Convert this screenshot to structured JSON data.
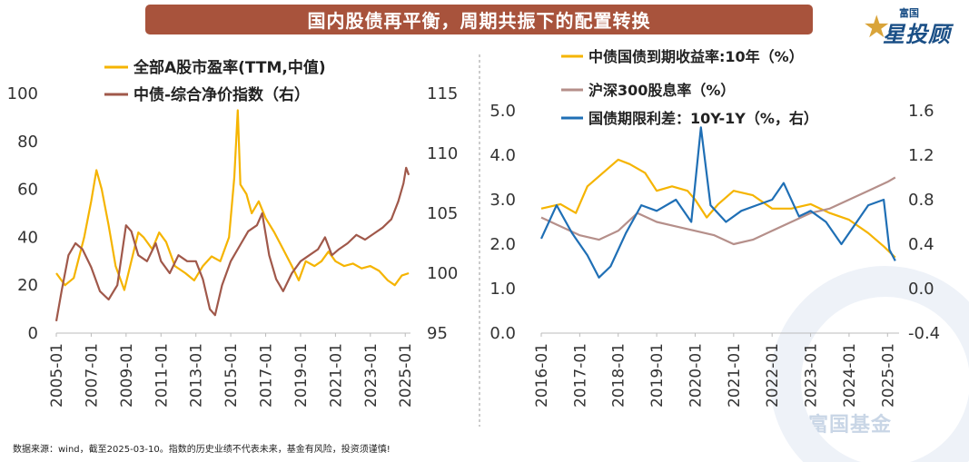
{
  "header": {
    "title": "国内股债再平衡，周期共振下的配置转换"
  },
  "logo": {
    "top": "富国",
    "main": "星投顾"
  },
  "watermark": {
    "text": "富国基金"
  },
  "footnote": "数据来源：wind，截至2025-03-10。指数的历史业绩不代表未来，基金有风险，投资须谨慎!",
  "colors": {
    "gold": "#f5b400",
    "brown": "#a0584a",
    "mauve": "#b58f8a",
    "blue": "#1f6fb5",
    "title_bg": "#a8533c"
  },
  "chart_data": [
    {
      "type": "line",
      "x_ticks": [
        "2005-01",
        "2007-01",
        "2009-01",
        "2011-01",
        "2013-01",
        "2015-01",
        "2017-01",
        "2019-01",
        "2021-01",
        "2023-01",
        "2025-01"
      ],
      "xlim": [
        2005,
        2025.3
      ],
      "ylim": [
        0,
        100
      ],
      "y_ticks": [
        0,
        20,
        40,
        60,
        80,
        100
      ],
      "y2lim": [
        95,
        115
      ],
      "y2_ticks": [
        95,
        100,
        105,
        110,
        115
      ],
      "legend_position": "top-left",
      "grid": false,
      "series": [
        {
          "name": "全部A股市盈率(TTM,中值)",
          "axis": "left",
          "color": "#f5b400",
          "points": [
            [
              2005,
              25
            ],
            [
              2005.5,
              20
            ],
            [
              2006,
              23
            ],
            [
              2006.6,
              40
            ],
            [
              2007.0,
              55
            ],
            [
              2007.3,
              68
            ],
            [
              2007.6,
              60
            ],
            [
              2008,
              45
            ],
            [
              2008.4,
              28
            ],
            [
              2008.9,
              18
            ],
            [
              2009.3,
              30
            ],
            [
              2009.7,
              42
            ],
            [
              2010,
              40
            ],
            [
              2010.5,
              35
            ],
            [
              2010.9,
              42
            ],
            [
              2011.3,
              38
            ],
            [
              2011.8,
              28
            ],
            [
              2012.4,
              25
            ],
            [
              2012.9,
              22
            ],
            [
              2013.4,
              28
            ],
            [
              2013.9,
              32
            ],
            [
              2014.4,
              30
            ],
            [
              2014.9,
              40
            ],
            [
              2015.2,
              65
            ],
            [
              2015.4,
              93
            ],
            [
              2015.55,
              62
            ],
            [
              2015.9,
              58
            ],
            [
              2016.2,
              50
            ],
            [
              2016.6,
              55
            ],
            [
              2017,
              48
            ],
            [
              2017.5,
              42
            ],
            [
              2018,
              35
            ],
            [
              2018.5,
              28
            ],
            [
              2018.9,
              22
            ],
            [
              2019.3,
              30
            ],
            [
              2019.8,
              28
            ],
            [
              2020.2,
              30
            ],
            [
              2020.6,
              34
            ],
            [
              2021,
              30
            ],
            [
              2021.5,
              28
            ],
            [
              2022,
              29
            ],
            [
              2022.5,
              27
            ],
            [
              2023,
              28
            ],
            [
              2023.5,
              26
            ],
            [
              2024,
              22
            ],
            [
              2024.4,
              20
            ],
            [
              2024.8,
              24
            ],
            [
              2025.2,
              25
            ]
          ]
        },
        {
          "name": "中债-综合净价指数（右）",
          "axis": "right",
          "color": "#a0584a",
          "points": [
            [
              2005,
              96
            ],
            [
              2005.3,
              98.5
            ],
            [
              2005.7,
              101.5
            ],
            [
              2006.1,
              102.5
            ],
            [
              2006.5,
              102
            ],
            [
              2007,
              100.5
            ],
            [
              2007.5,
              98.5
            ],
            [
              2008,
              97.8
            ],
            [
              2008.5,
              99
            ],
            [
              2009,
              104
            ],
            [
              2009.3,
              103.5
            ],
            [
              2009.7,
              101.5
            ],
            [
              2010.2,
              101
            ],
            [
              2010.7,
              102.5
            ],
            [
              2011,
              101
            ],
            [
              2011.5,
              100
            ],
            [
              2012,
              101.5
            ],
            [
              2012.5,
              101
            ],
            [
              2013,
              101
            ],
            [
              2013.4,
              99.5
            ],
            [
              2013.8,
              97
            ],
            [
              2014.1,
              96.5
            ],
            [
              2014.5,
              99
            ],
            [
              2015,
              101
            ],
            [
              2015.6,
              102.5
            ],
            [
              2016,
              103.5
            ],
            [
              2016.5,
              104
            ],
            [
              2016.8,
              105
            ],
            [
              2017.2,
              101.5
            ],
            [
              2017.6,
              99.5
            ],
            [
              2018,
              98.5
            ],
            [
              2018.5,
              100
            ],
            [
              2019,
              101
            ],
            [
              2019.5,
              101.5
            ],
            [
              2020,
              102
            ],
            [
              2020.4,
              103
            ],
            [
              2020.8,
              101.5
            ],
            [
              2021.2,
              102
            ],
            [
              2021.7,
              102.5
            ],
            [
              2022.2,
              103.2
            ],
            [
              2022.7,
              102.8
            ],
            [
              2023.2,
              103.3
            ],
            [
              2023.7,
              103.8
            ],
            [
              2024.2,
              104.5
            ],
            [
              2024.6,
              106
            ],
            [
              2024.9,
              107.5
            ],
            [
              2025.05,
              108.8
            ],
            [
              2025.2,
              108.2
            ]
          ]
        }
      ]
    },
    {
      "type": "line",
      "x_ticks": [
        "2016-01",
        "2017-01",
        "2018-01",
        "2019-01",
        "2020-01",
        "2021-01",
        "2022-01",
        "2023-01",
        "2024-01",
        "2025-01"
      ],
      "xlim": [
        2016,
        2025.3
      ],
      "ylim": [
        0.0,
        5.0
      ],
      "y_ticks": [
        "0.0",
        "1.0",
        "2.0",
        "3.0",
        "4.0",
        "5.0"
      ],
      "y2lim": [
        -0.4,
        1.6
      ],
      "y2_ticks": [
        "-0.4",
        "0.0",
        "0.4",
        "0.8",
        "1.2",
        "1.6"
      ],
      "legend_position": "top",
      "grid": false,
      "series": [
        {
          "name": "中债国债到期收益率:10年（%）",
          "axis": "left",
          "color": "#f5b400",
          "points": [
            [
              2016,
              2.8
            ],
            [
              2016.5,
              2.9
            ],
            [
              2016.9,
              2.7
            ],
            [
              2017.2,
              3.3
            ],
            [
              2017.6,
              3.6
            ],
            [
              2018,
              3.9
            ],
            [
              2018.3,
              3.8
            ],
            [
              2018.7,
              3.6
            ],
            [
              2019,
              3.2
            ],
            [
              2019.4,
              3.3
            ],
            [
              2019.8,
              3.2
            ],
            [
              2020,
              3.0
            ],
            [
              2020.3,
              2.6
            ],
            [
              2020.6,
              2.9
            ],
            [
              2021,
              3.2
            ],
            [
              2021.5,
              3.1
            ],
            [
              2022,
              2.8
            ],
            [
              2022.5,
              2.8
            ],
            [
              2023,
              2.9
            ],
            [
              2023.5,
              2.7
            ],
            [
              2024,
              2.55
            ],
            [
              2024.5,
              2.25
            ],
            [
              2024.9,
              1.95
            ],
            [
              2025.2,
              1.7
            ]
          ]
        },
        {
          "name": "沪深300股息率（%）",
          "axis": "left",
          "color": "#b58f8a",
          "points": [
            [
              2016,
              2.6
            ],
            [
              2016.5,
              2.4
            ],
            [
              2017,
              2.2
            ],
            [
              2017.5,
              2.1
            ],
            [
              2018,
              2.3
            ],
            [
              2018.5,
              2.7
            ],
            [
              2019,
              2.5
            ],
            [
              2019.5,
              2.4
            ],
            [
              2020,
              2.3
            ],
            [
              2020.5,
              2.2
            ],
            [
              2021,
              2.0
            ],
            [
              2021.5,
              2.1
            ],
            [
              2022,
              2.3
            ],
            [
              2022.5,
              2.5
            ],
            [
              2023,
              2.7
            ],
            [
              2023.5,
              2.8
            ],
            [
              2024,
              3.0
            ],
            [
              2024.5,
              3.2
            ],
            [
              2025,
              3.4
            ],
            [
              2025.2,
              3.5
            ]
          ]
        },
        {
          "name": "国债期限利差：10Y-1Y（%，右）",
          "axis": "right",
          "color": "#1f6fb5",
          "points": [
            [
              2016,
              0.45
            ],
            [
              2016.4,
              0.75
            ],
            [
              2016.8,
              0.5
            ],
            [
              2017.2,
              0.3
            ],
            [
              2017.5,
              0.1
            ],
            [
              2017.8,
              0.2
            ],
            [
              2018.2,
              0.5
            ],
            [
              2018.6,
              0.75
            ],
            [
              2019,
              0.7
            ],
            [
              2019.5,
              0.8
            ],
            [
              2019.9,
              0.6
            ],
            [
              2020.15,
              1.45
            ],
            [
              2020.4,
              0.75
            ],
            [
              2020.8,
              0.6
            ],
            [
              2021.2,
              0.7
            ],
            [
              2021.6,
              0.75
            ],
            [
              2022,
              0.8
            ],
            [
              2022.3,
              0.95
            ],
            [
              2022.7,
              0.65
            ],
            [
              2023,
              0.7
            ],
            [
              2023.4,
              0.6
            ],
            [
              2023.8,
              0.4
            ],
            [
              2024.1,
              0.55
            ],
            [
              2024.5,
              0.75
            ],
            [
              2024.9,
              0.8
            ],
            [
              2025.05,
              0.35
            ],
            [
              2025.2,
              0.25
            ]
          ]
        }
      ]
    }
  ]
}
